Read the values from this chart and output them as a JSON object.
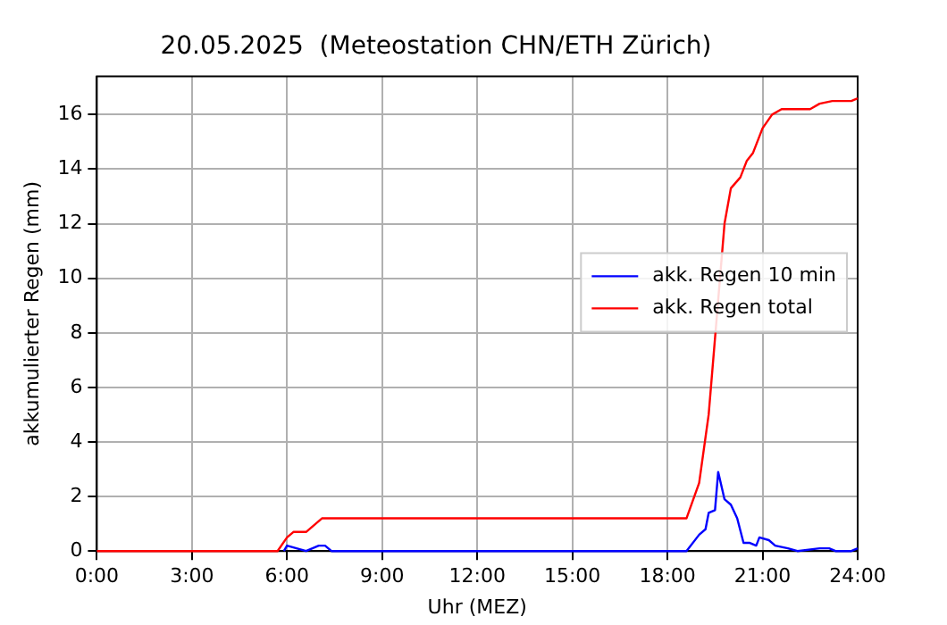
{
  "chart_data": {
    "type": "line",
    "title": "20.05.2025  (Meteostation CHN/ETH Zürich)",
    "xlabel": "Uhr (MEZ)",
    "ylabel": "akkumulierter Regen (mm)",
    "xlim": [
      0,
      24
    ],
    "xticks": [
      {
        "value": 0,
        "label": "0:00"
      },
      {
        "value": 3,
        "label": "3:00"
      },
      {
        "value": 6,
        "label": "6:00"
      },
      {
        "value": 9,
        "label": "9:00"
      },
      {
        "value": 12,
        "label": "12:00"
      },
      {
        "value": 15,
        "label": "15:00"
      },
      {
        "value": 18,
        "label": "18:00"
      },
      {
        "value": 21,
        "label": "21:00"
      },
      {
        "value": 24,
        "label": "24:00"
      }
    ],
    "ylim": [
      0,
      17.4
    ],
    "yticks": [
      0,
      2,
      4,
      6,
      8,
      10,
      12,
      14,
      16
    ],
    "grid": true,
    "legend": "right",
    "marker": "none",
    "line_style": "solid",
    "series": [
      {
        "name": "akk. Regen 10 min",
        "color": "#0000ff",
        "x": [
          5.9,
          6.0,
          6.3,
          6.6,
          7.0,
          7.2,
          7.4,
          18.6,
          19.0,
          19.2,
          19.3,
          19.5,
          19.6,
          19.8,
          20.0,
          20.2,
          20.4,
          20.6,
          20.8,
          20.9,
          21.2,
          21.4,
          21.8,
          22.1,
          22.8,
          23.1,
          23.3,
          23.8,
          24.0
        ],
        "values": [
          0,
          0.2,
          0.1,
          0,
          0.2,
          0.2,
          0,
          0,
          0.6,
          0.8,
          1.4,
          1.5,
          2.9,
          1.9,
          1.7,
          1.2,
          0.3,
          0.3,
          0.2,
          0.5,
          0.4,
          0.2,
          0.1,
          0,
          0.1,
          0.1,
          0,
          0,
          0.1
        ]
      },
      {
        "name": "akk. Regen total",
        "color": "#ff0000",
        "x": [
          0,
          5.7,
          6.0,
          6.2,
          6.6,
          7.1,
          18.6,
          19.0,
          19.3,
          19.6,
          19.8,
          20.0,
          20.3,
          20.5,
          20.7,
          21.0,
          21.3,
          21.6,
          22.5,
          22.8,
          23.2,
          23.8,
          24.0
        ],
        "values": [
          0,
          0,
          0.5,
          0.7,
          0.7,
          1.2,
          1.2,
          2.5,
          5,
          null,
          12,
          13.3,
          13.7,
          14.3,
          14.6,
          15.5,
          16.0,
          16.2,
          16.2,
          16.4,
          16.5,
          16.5,
          16.6
        ]
      }
    ]
  }
}
